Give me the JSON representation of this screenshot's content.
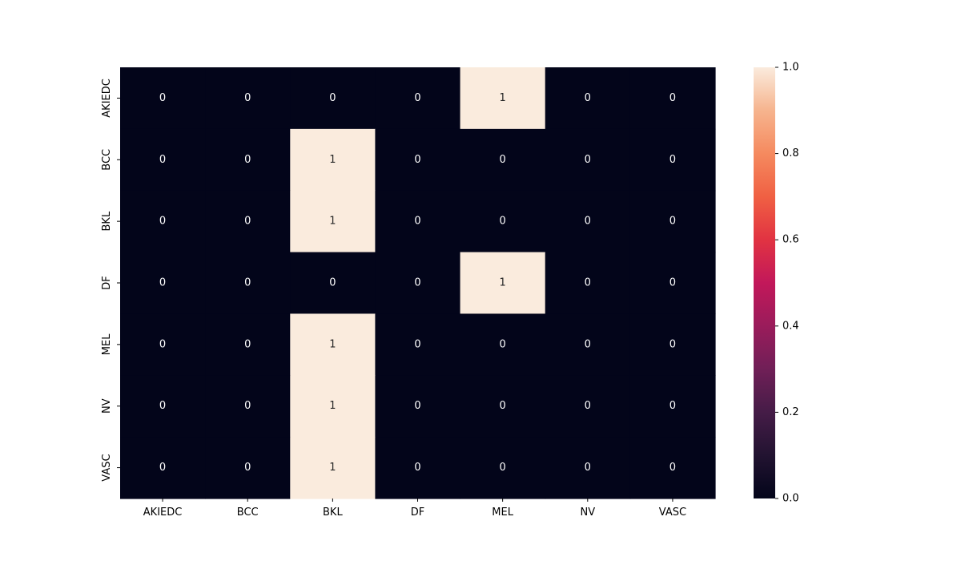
{
  "chart_data": {
    "type": "heatmap",
    "title": "",
    "xlabel": "",
    "ylabel": "",
    "x_labels": [
      "AKIEDC",
      "BCC",
      "BKL",
      "DF",
      "MEL",
      "NV",
      "VASC"
    ],
    "y_labels": [
      "AKIEDC",
      "BCC",
      "BKL",
      "DF",
      "MEL",
      "NV",
      "VASC"
    ],
    "values": [
      [
        0,
        0,
        0,
        0,
        1,
        0,
        0
      ],
      [
        0,
        0,
        1,
        0,
        0,
        0,
        0
      ],
      [
        0,
        0,
        1,
        0,
        0,
        0,
        0
      ],
      [
        0,
        0,
        0,
        0,
        1,
        0,
        0
      ],
      [
        0,
        0,
        1,
        0,
        0,
        0,
        0
      ],
      [
        0,
        0,
        1,
        0,
        0,
        0,
        0
      ],
      [
        0,
        0,
        1,
        0,
        0,
        0,
        0
      ]
    ],
    "colorbar": {
      "range": [
        0.0,
        1.0
      ],
      "ticks": [
        "0.0",
        "0.2",
        "0.4",
        "0.6",
        "0.8",
        "1.0"
      ],
      "colormap": "rocket"
    },
    "colors": {
      "low": "#03051a",
      "high": "#faebdd"
    },
    "annotated": true,
    "grid": false
  }
}
